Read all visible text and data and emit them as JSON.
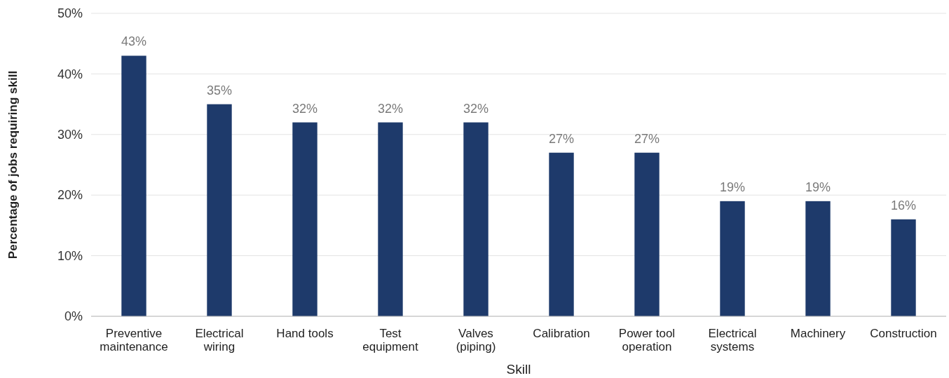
{
  "chart_data": {
    "type": "bar",
    "xlabel": "Skill",
    "ylabel": "Percentage of jobs requiring skill",
    "categories": [
      "Preventive maintenance",
      "Electrical wiring",
      "Hand tools",
      "Test equipment",
      "Valves (piping)",
      "Calibration",
      "Power tool operation",
      "Electrical systems",
      "Machinery",
      "Construction"
    ],
    "values": [
      43,
      35,
      32,
      32,
      32,
      27,
      27,
      19,
      19,
      16
    ],
    "color": "#1e3a6b",
    "ylim": [
      0,
      50
    ],
    "yticks": [
      {
        "value": 0,
        "label": "0%"
      },
      {
        "value": 10,
        "label": "10%"
      },
      {
        "value": 20,
        "label": "20%"
      },
      {
        "value": 30,
        "label": "30%"
      },
      {
        "value": 40,
        "label": "40%"
      },
      {
        "value": 50,
        "label": "50%"
      }
    ],
    "grid": "y",
    "value_labels": [
      "43%",
      "35%",
      "32%",
      "32%",
      "32%",
      "27%",
      "27%",
      "19%",
      "19%",
      "16%"
    ]
  }
}
